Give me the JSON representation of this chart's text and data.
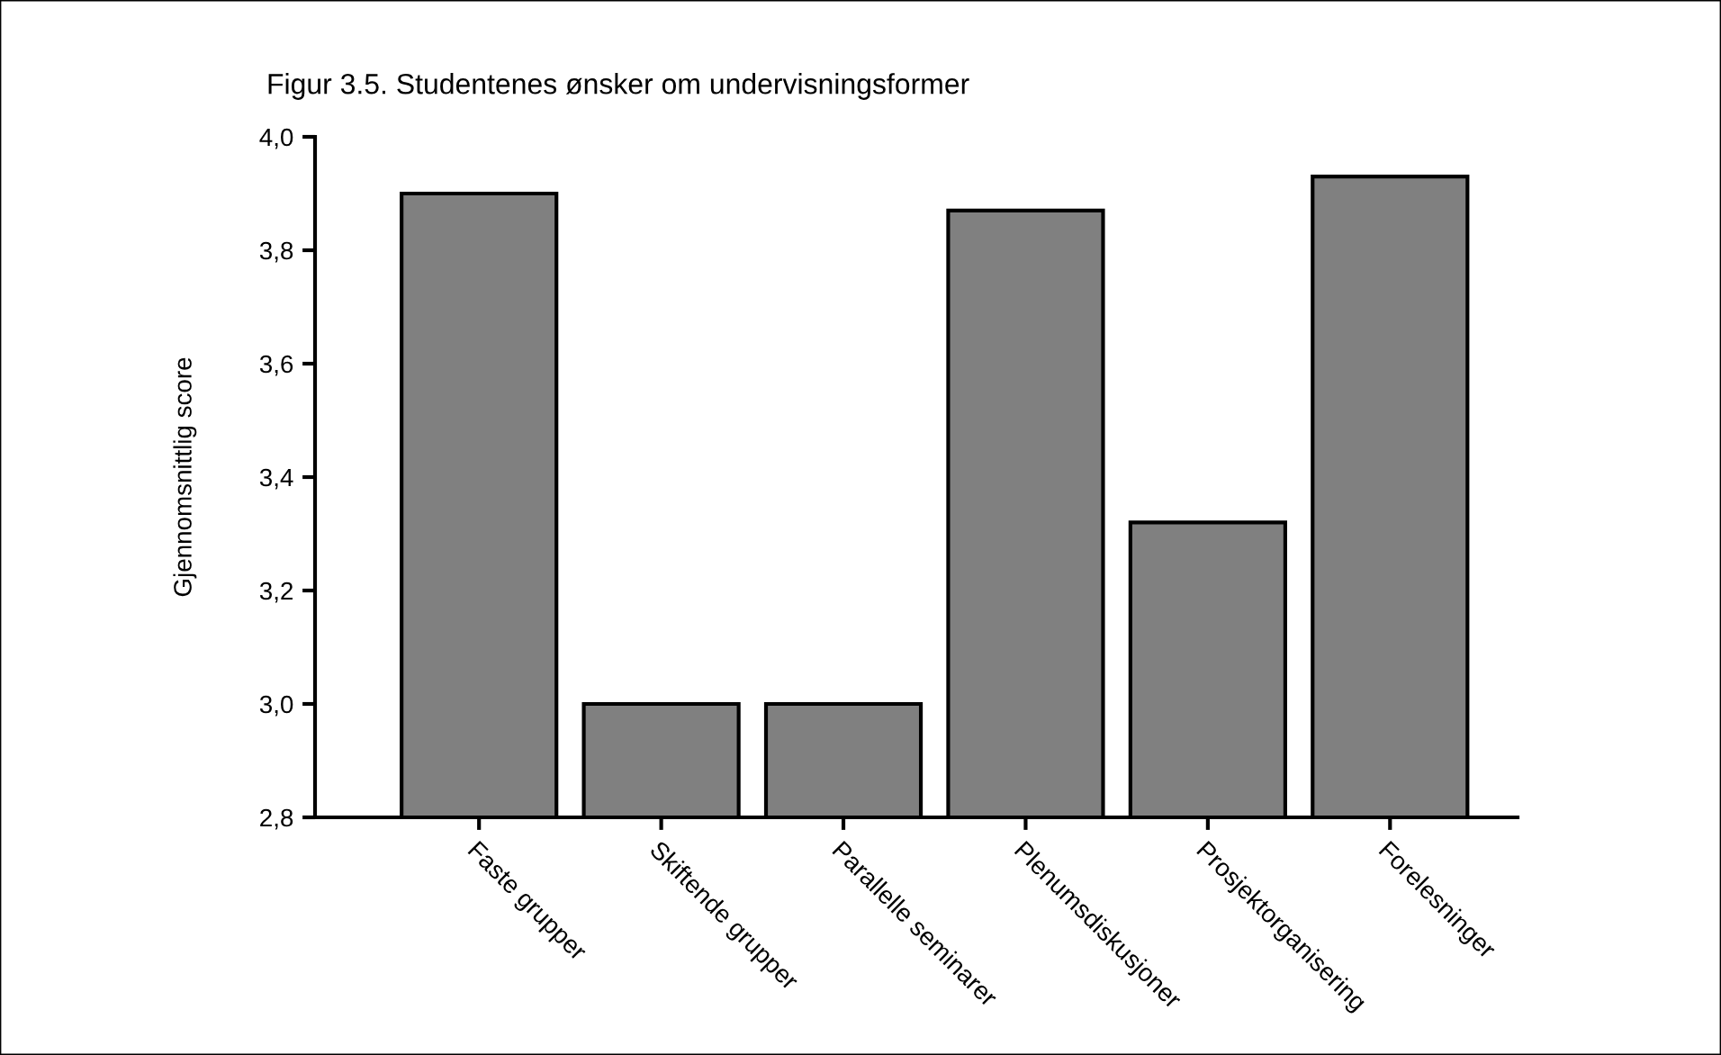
{
  "chart_data": {
    "type": "bar",
    "title": "Figur 3.5. Studentenes ønsker om undervisningsformer",
    "ylabel": "Gjennomsnittlig score",
    "categories": [
      "Faste grupper",
      "Skiftende grupper",
      "Parallelle seminarer",
      "Plenumsdiskusjoner",
      "Prosjektorganisering",
      "Forelesninger"
    ],
    "values": [
      3.9,
      3.0,
      3.0,
      3.87,
      3.32,
      3.93
    ],
    "color": "#808080",
    "ylim": [
      2.8,
      4.0
    ],
    "yticks": [
      {
        "value": 2.8,
        "label": "2,8"
      },
      {
        "value": 3.0,
        "label": "3,0"
      },
      {
        "value": 3.2,
        "label": "3,2"
      },
      {
        "value": 3.4,
        "label": "3,4"
      },
      {
        "value": 3.6,
        "label": "3,6"
      },
      {
        "value": 3.8,
        "label": "3,8"
      },
      {
        "value": 4.0,
        "label": "4,0"
      }
    ],
    "grid": false
  }
}
